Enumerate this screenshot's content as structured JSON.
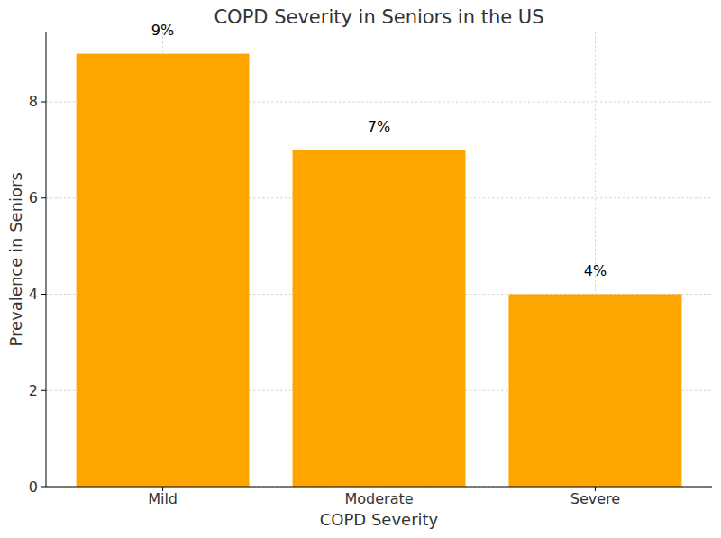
{
  "chart_data": {
    "type": "bar",
    "title": "COPD Severity in Seniors in the US",
    "x_label": "COPD Severity",
    "y_label": "Prevalence in Seniors",
    "categories": [
      "Mild",
      "Moderate",
      "Severe"
    ],
    "values": [
      9,
      7,
      4
    ],
    "value_labels": [
      "9%",
      "7%",
      "4%"
    ],
    "data_labels": true,
    "color": "#ffa500",
    "ylim": [
      0,
      9.45
    ],
    "yticks": [
      0,
      2,
      4,
      6,
      8
    ],
    "grid": true
  }
}
